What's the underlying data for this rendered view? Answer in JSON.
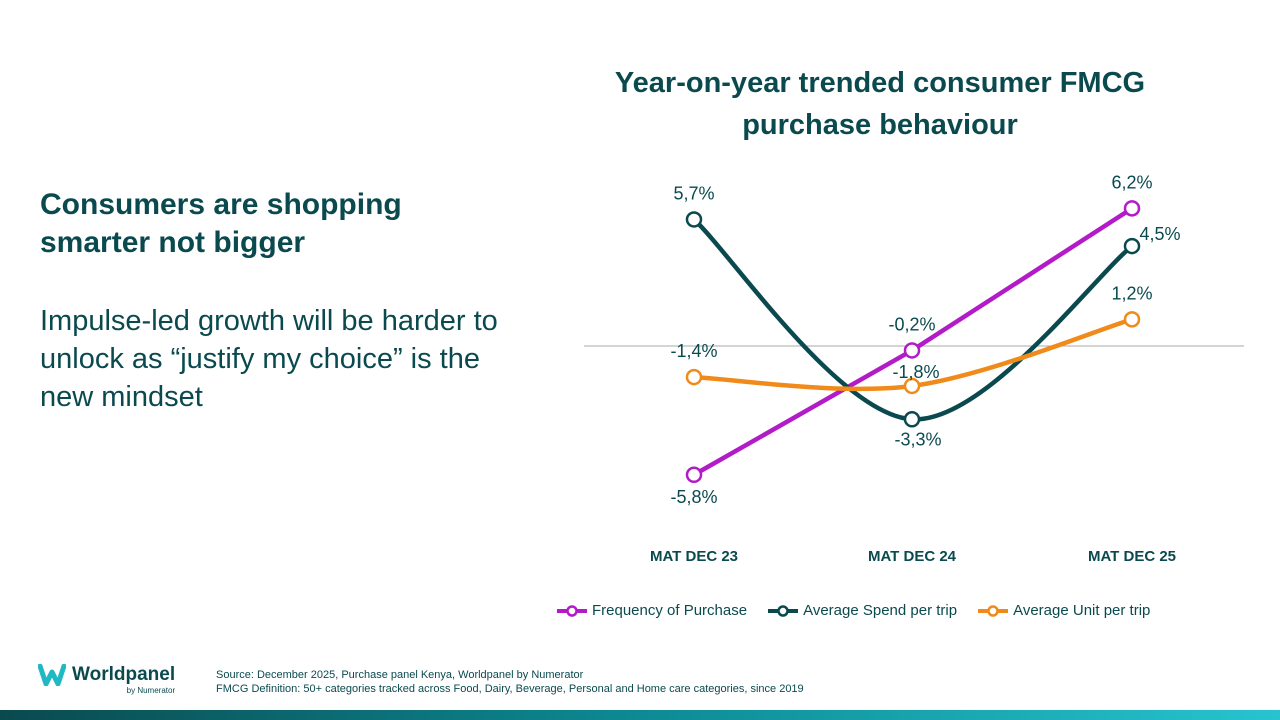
{
  "slide": {
    "headline": "Consumers are shopping smarter not bigger",
    "subtext": "Impulse-led growth will be harder to unlock as “justify my choice” is the new mindset"
  },
  "colors": {
    "frequency": "#b31bc8",
    "spend": "#0a4a4f",
    "units": "#f08a1a",
    "zero_line": "#a8a8a8",
    "text": "#0a4a4f"
  },
  "chart_data": {
    "type": "line",
    "title": "Year-on-year trended consumer FMCG purchase behaviour",
    "categories": [
      "MAT DEC 23",
      "MAT DEC 24",
      "MAT DEC 25"
    ],
    "series": [
      {
        "name": "Frequency of Purchase",
        "values": [
          -5.8,
          -0.2,
          6.2
        ],
        "labels": [
          "-5,8%",
          "-0,2%",
          "6,2%"
        ],
        "color_key": "frequency"
      },
      {
        "name": "Average Spend per trip",
        "values": [
          5.7,
          -3.3,
          4.5
        ],
        "labels": [
          "5,7%",
          "-3,3%",
          "4,5%"
        ],
        "color_key": "spend"
      },
      {
        "name": "Average Unit per trip",
        "values": [
          -1.4,
          -1.8,
          1.2
        ],
        "labels": [
          "-1,4%",
          "-1,8%",
          "1,2%"
        ],
        "color_key": "units"
      }
    ],
    "ylim": [
      -8,
      8
    ],
    "zero_line": true,
    "legend_position": "bottom"
  },
  "footer": {
    "logo_name": "Worldpanel",
    "logo_by": "by Numerator",
    "source": "Source: December 2025, Purchase panel Kenya, Worldpanel by Numerator",
    "definition": "FMCG Definition: 50+ categories tracked across Food, Dairy, Beverage, Personal and Home care categories, since 2019"
  }
}
